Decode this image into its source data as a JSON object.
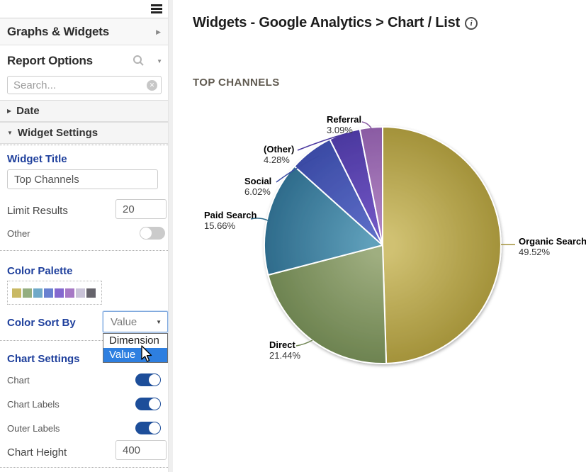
{
  "sidebar": {
    "menu_icon": "hamburger-icon",
    "graphs_widgets": {
      "label": "Graphs & Widgets"
    },
    "report_options": {
      "label": "Report Options"
    },
    "search": {
      "placeholder": "Search..."
    },
    "date_section": {
      "label": "Date",
      "expanded": false
    },
    "widget_settings_section": {
      "label": "Widget Settings",
      "expanded": true
    },
    "widget_title": {
      "label": "Widget Title",
      "value": "Top Channels"
    },
    "limit_results": {
      "label": "Limit Results",
      "value": "20"
    },
    "other": {
      "label": "Other",
      "enabled": false
    },
    "color_palette": {
      "label": "Color Palette",
      "swatches": [
        "#c9b964",
        "#94ae80",
        "#6fa9c8",
        "#6880d0",
        "#8468cf",
        "#a678c5",
        "#c9c3d8",
        "#66646c"
      ]
    },
    "color_sort_by": {
      "label": "Color Sort By",
      "value": "Value",
      "options": [
        "Dimension",
        "Value"
      ],
      "highlighted": "Value",
      "highlight_color": "#2e7fe0"
    },
    "chart_settings": {
      "label": "Chart Settings",
      "toggles": [
        {
          "label": "Chart",
          "on": true
        },
        {
          "label": "Chart Labels",
          "on": true
        },
        {
          "label": "Outer Labels",
          "on": true
        }
      ],
      "chart_height": {
        "label": "Chart Height",
        "value": "400"
      },
      "toggle_on_color": "#1d4e9a"
    }
  },
  "main": {
    "title": "Widgets - Google Analytics > Chart / List",
    "info_icon": "i",
    "chart_heading": "TOP CHANNELS"
  },
  "chart_data": {
    "type": "pie",
    "title": "TOP CHANNELS",
    "start_angle_deg": 0,
    "direction": "clockwise",
    "legend": "none",
    "slices": [
      {
        "label": "Organic Search",
        "value": 49.52,
        "display": "49.52%",
        "color_center": "#d0c172",
        "color_edge": "#a3923a"
      },
      {
        "label": "Direct",
        "value": 21.44,
        "display": "21.44%",
        "color_center": "#9fae80",
        "color_edge": "#6d8350"
      },
      {
        "label": "Paid Search",
        "value": 15.66,
        "display": "15.66%",
        "color_center": "#60a0bb",
        "color_edge": "#2e6b8b"
      },
      {
        "label": "Social",
        "value": 6.02,
        "display": "6.02%",
        "color_center": "#5d6dc7",
        "color_edge": "#3a4aa4"
      },
      {
        "label": "(Other)",
        "value": 4.28,
        "display": "4.28%",
        "color_center": "#7257c5",
        "color_edge": "#4b389f"
      },
      {
        "label": "Referral",
        "value": 3.09,
        "display": "3.09%",
        "color_center": "#b286c3",
        "color_edge": "#8a5ba3"
      }
    ]
  }
}
